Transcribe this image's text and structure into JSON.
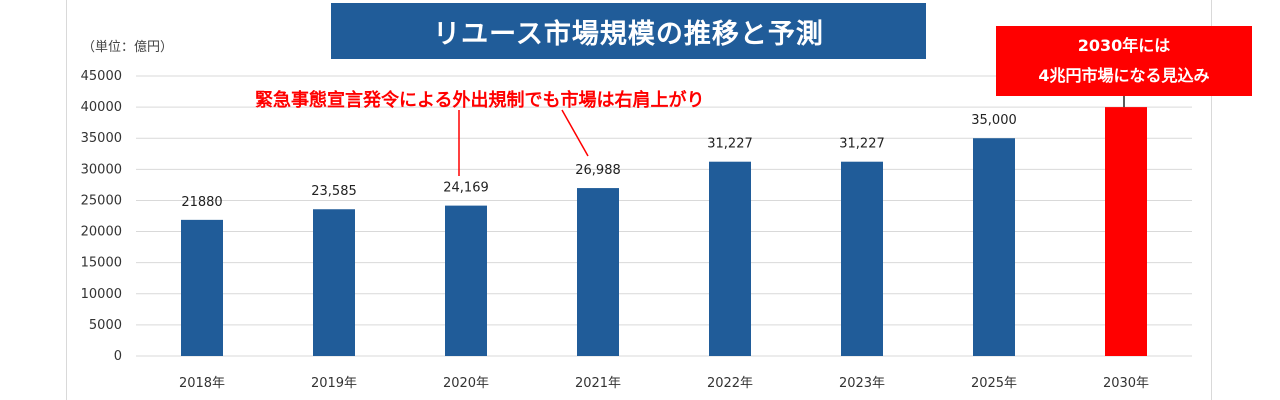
{
  "chart_data": {
    "type": "bar",
    "title": "リユース市場規模の推移と予測",
    "unit_label": "（単位：億円）",
    "categories": [
      "2018年",
      "2019年",
      "2020年",
      "2021年",
      "2022年",
      "2023年",
      "2025年",
      "2030年"
    ],
    "values": [
      21880,
      23585,
      24169,
      26988,
      31227,
      31227,
      35000,
      40000
    ],
    "data_labels": [
      "21880",
      "23,585",
      "24,169",
      "26,988",
      "31,227",
      "31,227",
      "35,000",
      ""
    ],
    "ylim": [
      0,
      45000
    ],
    "yticks": [
      0,
      5000,
      10000,
      15000,
      20000,
      25000,
      30000,
      35000,
      40000,
      45000
    ],
    "grid": true,
    "colors": {
      "bar": "#205c99",
      "highlight_bar": "#ff0000",
      "grid": "#d9d9d9",
      "annotation": "#ff0000"
    },
    "highlight_index": 7,
    "annotations": {
      "covid_note": "緊急事態宣言発令による外出規制でも市場は右肩上がり",
      "forecast_line1": "2030年には",
      "forecast_line2": "4兆円市場になる見込み"
    }
  }
}
